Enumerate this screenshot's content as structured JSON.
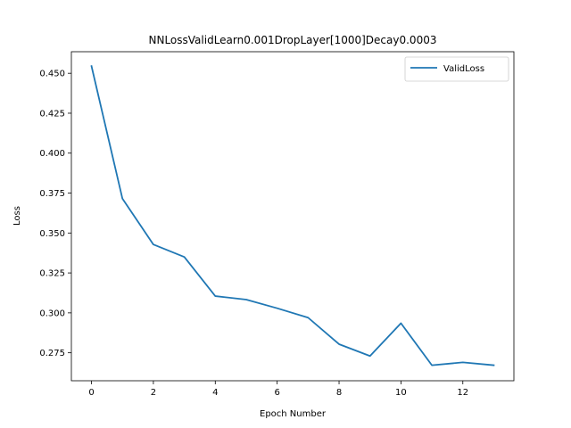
{
  "chart_data": {
    "type": "line",
    "title": "NNLossValidLearn0.001DropLayer[1000]Decay0.0003",
    "xlabel": "Epoch Number",
    "ylabel": "Loss",
    "xlim": [
      -0.65,
      13.65
    ],
    "ylim": [
      0.2575,
      0.4635
    ],
    "xticks": [
      0,
      2,
      4,
      6,
      8,
      10,
      12
    ],
    "xtick_labels": [
      "0",
      "2",
      "4",
      "6",
      "8",
      "10",
      "12"
    ],
    "yticks": [
      0.275,
      0.3,
      0.325,
      0.35,
      0.375,
      0.4,
      0.425,
      0.45
    ],
    "ytick_labels": [
      "0.275",
      "0.300",
      "0.325",
      "0.350",
      "0.375",
      "0.400",
      "0.425",
      "0.450"
    ],
    "grid": false,
    "legend_position": "top-right",
    "series": [
      {
        "name": "ValidLoss",
        "color": "#1f77b4",
        "x": [
          0,
          1,
          2,
          3,
          4,
          5,
          6,
          7,
          8,
          9,
          10,
          11,
          12,
          13
        ],
        "y": [
          0.4545,
          0.3715,
          0.3428,
          0.335,
          0.3105,
          0.3083,
          0.3029,
          0.297,
          0.2804,
          0.273,
          0.2935,
          0.2672,
          0.269,
          0.2672
        ]
      }
    ]
  }
}
